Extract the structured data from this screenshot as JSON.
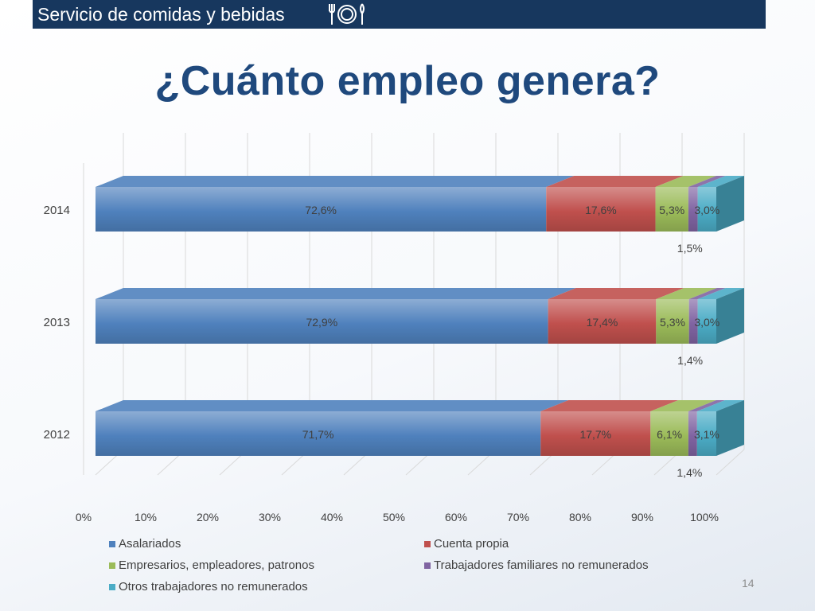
{
  "header": {
    "title": "Servicio de comidas y bebidas",
    "icon": "dining-icon"
  },
  "slide": {
    "title": "¿Cuánto empleo genera?",
    "page_number": "14"
  },
  "colors": {
    "header_bg": "#17375e",
    "title": "#1f497d",
    "series": [
      "#4f81bd",
      "#c0504d",
      "#9bbb59",
      "#8064a2",
      "#4bacc6"
    ]
  },
  "chart_data": {
    "type": "bar",
    "orientation": "horizontal",
    "stacked": "percent",
    "categories": [
      "2014",
      "2013",
      "2012"
    ],
    "series": [
      {
        "name": "Asalariados",
        "values": [
          72.6,
          72.9,
          71.7
        ],
        "labels": [
          "72,6%",
          "72,9%",
          "71,7%"
        ]
      },
      {
        "name": "Cuenta propia",
        "values": [
          17.6,
          17.4,
          17.7
        ],
        "labels": [
          "17,6%",
          "17,4%",
          "17,7%"
        ]
      },
      {
        "name": "Empresarios, empleadores, patronos",
        "values": [
          5.3,
          5.3,
          6.1
        ],
        "labels": [
          "5,3%",
          "5,3%",
          "6,1%"
        ]
      },
      {
        "name": "Trabajadores familiares no remunerados",
        "values": [
          1.5,
          1.4,
          1.4
        ],
        "labels": [
          "1,5%",
          "1,4%",
          "1,4%"
        ]
      },
      {
        "name": "Otros trabajadores no remunerados",
        "values": [
          3.0,
          3.0,
          3.1
        ],
        "labels": [
          "3,0%",
          "3,0%",
          "3,1%"
        ]
      }
    ],
    "x_ticks": [
      "0%",
      "10%",
      "20%",
      "30%",
      "40%",
      "50%",
      "60%",
      "70%",
      "80%",
      "90%",
      "100%"
    ],
    "xlim": [
      0,
      100
    ],
    "grid": true,
    "style": "3d",
    "legend_position": "bottom"
  }
}
